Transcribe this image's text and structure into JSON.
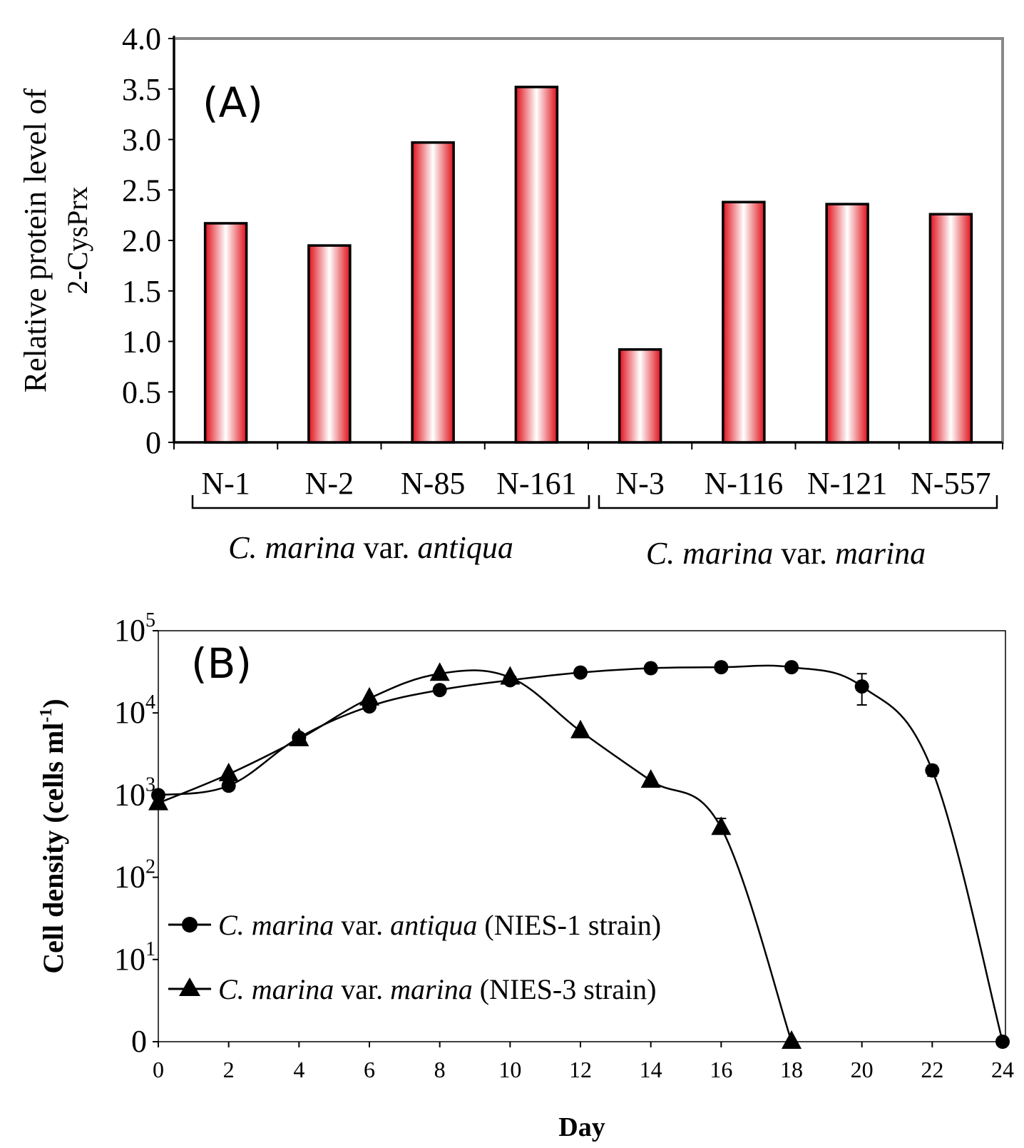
{
  "chart_data": [
    {
      "type": "bar",
      "panel_label": "(A)",
      "ylabel_line1": "Relative  protein level of",
      "ylabel_line2": "2-CysPrx",
      "ylim": [
        0,
        4.0
      ],
      "yticks": [
        "0",
        "0.5",
        "1.0",
        "1.5",
        "2.0",
        "2.5",
        "3.0",
        "3.5",
        "4.0"
      ],
      "categories": [
        "N-1",
        "N-2",
        "N-85",
        "N-161",
        "N-3",
        "N-116",
        "N-121",
        "N-557"
      ],
      "values": [
        2.17,
        1.95,
        2.97,
        3.52,
        0.92,
        2.38,
        2.36,
        2.26
      ],
      "groups": [
        {
          "prefix": "C. ",
          "species": "marina",
          "mid": " var. ",
          "variety": "antiqua"
        },
        {
          "prefix": "C. ",
          "species": "marina",
          "mid": " var. ",
          "variety": "marina"
        }
      ],
      "bar_color": "#e0101a"
    },
    {
      "type": "line",
      "panel_label": "(B)",
      "xlabel": "Day",
      "ylabel": "Cell density (cells ml",
      "ylabel_sup": "-1",
      "ylabel_close": ")",
      "xlim": [
        0,
        24
      ],
      "xticks": [
        0,
        2,
        4,
        6,
        8,
        10,
        12,
        14,
        16,
        18,
        20,
        22,
        24
      ],
      "yscale": "log",
      "yticks": [
        {
          "base": "0",
          "exp": ""
        },
        {
          "base": "10",
          "exp": "1"
        },
        {
          "base": "10",
          "exp": "2"
        },
        {
          "base": "10",
          "exp": "3"
        },
        {
          "base": "10",
          "exp": "4"
        },
        {
          "base": "10",
          "exp": "5"
        }
      ],
      "series": [
        {
          "marker": "circle",
          "legend_prefix": "C. ",
          "legend_species": "marina",
          "legend_mid": " var. ",
          "legend_variety": "antiqua",
          "legend_suffix": " (NIES-1 strain)",
          "x": [
            0,
            2,
            4,
            6,
            8,
            10,
            12,
            14,
            16,
            18,
            20,
            22,
            24
          ],
          "y": [
            1000,
            1300,
            5000,
            12000,
            19000,
            25000,
            31000,
            35000,
            36000,
            36000,
            21000,
            2000,
            0
          ],
          "err_upper": [
            0,
            0,
            0,
            0,
            0,
            0,
            0,
            0,
            0,
            0,
            9000,
            300,
            0
          ],
          "err_lower": [
            0,
            0,
            0,
            0,
            0,
            0,
            0,
            0,
            0,
            0,
            8500,
            300,
            0
          ]
        },
        {
          "marker": "triangle",
          "legend_prefix": "C. ",
          "legend_species": "marina",
          "legend_mid": " var. ",
          "legend_variety": "marina",
          "legend_suffix": " (NIES-3 strain)",
          "x": [
            0,
            2,
            4,
            6,
            8,
            10,
            12,
            14,
            16,
            18
          ],
          "y": [
            800,
            1800,
            4800,
            15000,
            30000,
            27000,
            6000,
            1500,
            400,
            0
          ],
          "err_upper": [
            0,
            0,
            0,
            0,
            0,
            0,
            0,
            0,
            120,
            0
          ],
          "err_lower": [
            0,
            0,
            0,
            0,
            0,
            0,
            0,
            0,
            0,
            0
          ]
        }
      ]
    }
  ]
}
